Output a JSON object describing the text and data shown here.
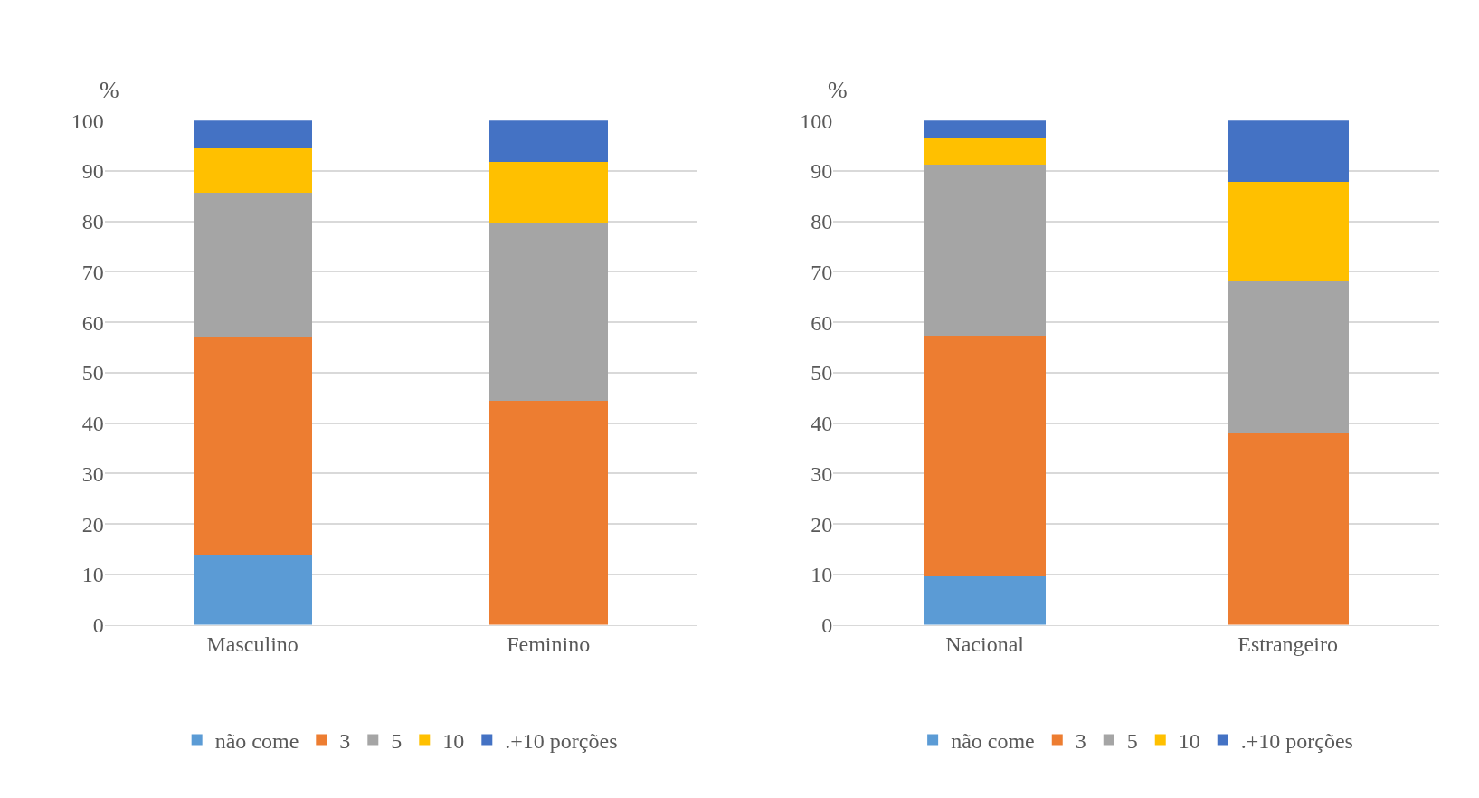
{
  "chart_data": [
    {
      "type": "bar",
      "stacked": true,
      "ylabel": "%",
      "categories": [
        "Masculino",
        "Feminino"
      ],
      "ylim": [
        0,
        100
      ],
      "yticks": [
        0,
        10,
        20,
        30,
        40,
        50,
        60,
        70,
        80,
        90,
        100
      ],
      "grid": "y",
      "legend": "bottom",
      "series": [
        {
          "name": "não come",
          "color": "#5b9bd5",
          "values": [
            14.0,
            0
          ]
        },
        {
          "name": "3",
          "color": "#ed7d31",
          "values": [
            43.0,
            44.5
          ]
        },
        {
          "name": "5",
          "color": "#a5a5a5",
          "values": [
            28.7,
            35.2
          ]
        },
        {
          "name": "10",
          "color": "#ffc000",
          "values": [
            8.8,
            12.1
          ]
        },
        {
          "name": ".+10 porções",
          "color": "#4472c4",
          "values": [
            5.5,
            8.2
          ]
        }
      ]
    },
    {
      "type": "bar",
      "stacked": true,
      "ylabel": "%",
      "categories": [
        "Nacional",
        "Estrangeiro"
      ],
      "ylim": [
        0,
        100
      ],
      "yticks": [
        0,
        10,
        20,
        30,
        40,
        50,
        60,
        70,
        80,
        90,
        100
      ],
      "grid": "y",
      "legend": "bottom",
      "series": [
        {
          "name": "não come",
          "color": "#5b9bd5",
          "values": [
            9.7,
            0
          ]
        },
        {
          "name": "3",
          "color": "#ed7d31",
          "values": [
            47.6,
            37.9
          ]
        },
        {
          "name": "5",
          "color": "#a5a5a5",
          "values": [
            34.0,
            30.2
          ]
        },
        {
          "name": "10",
          "color": "#ffc000",
          "values": [
            5.1,
            19.8
          ]
        },
        {
          "name": ".+10 porções",
          "color": "#4472c4",
          "values": [
            3.6,
            12.1
          ]
        }
      ]
    }
  ]
}
